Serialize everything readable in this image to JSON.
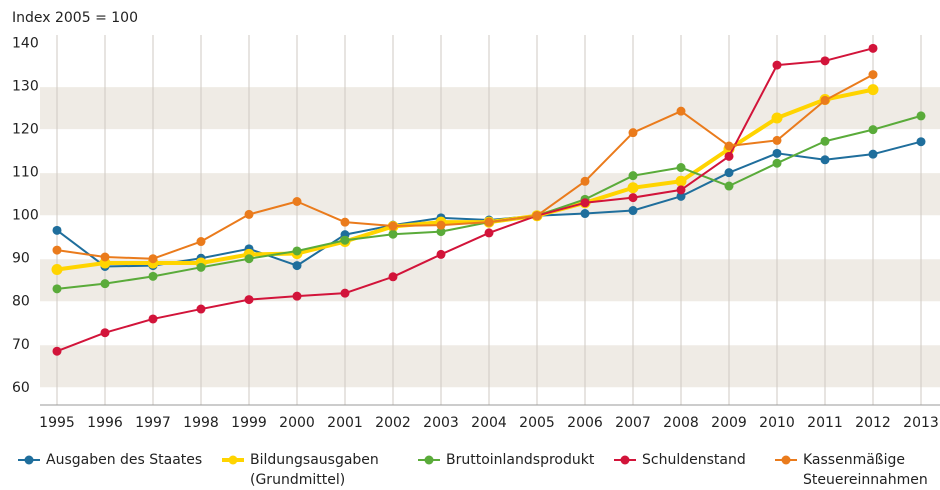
{
  "chart_data": {
    "type": "line",
    "y_axis_label": "Index 2005 = 100",
    "categories": [
      "1995",
      "1996",
      "1997",
      "1998",
      "1999",
      "2000",
      "2001",
      "2002",
      "2003",
      "2004",
      "2005",
      "2006",
      "2007",
      "2008",
      "2009",
      "2010",
      "2011",
      "2012",
      "2013"
    ],
    "ylim": [
      56,
      142
    ],
    "yticks": [
      60,
      70,
      80,
      90,
      100,
      110,
      120,
      130,
      140
    ],
    "banded_grid": true,
    "legend": "bottom",
    "series": [
      {
        "name": "Ausgaben des Staates",
        "color": "#1f6e9c",
        "values": [
          96.6,
          88.2,
          88.4,
          90.1,
          92.3,
          88.4,
          95.6,
          97.8,
          99.5,
          99,
          100,
          100.5,
          101.2,
          104.5,
          110,
          114.5,
          113,
          114.3,
          117.2
        ]
      },
      {
        "name": "Bildungsausgaben (Grundmittel)",
        "color": "#ffd400",
        "values": [
          87.5,
          89,
          89,
          89,
          91,
          91.2,
          94,
          97.5,
          98.5,
          98.5,
          100,
          103,
          106.5,
          108,
          115.5,
          122.7,
          127,
          129.3,
          null
        ]
      },
      {
        "name": "Bruttoinlandsprodukt",
        "color": "#5aab3a",
        "values": [
          83,
          84.2,
          85.9,
          88,
          90,
          91.8,
          94.3,
          95.7,
          96.3,
          98.5,
          100,
          103.8,
          109.3,
          111.2,
          106.9,
          112.2,
          117.3,
          120,
          123.2
        ]
      },
      {
        "name": "Schuldenstand",
        "color": "#d2143a",
        "values": [
          68.5,
          72.8,
          76,
          78.3,
          80.5,
          81.3,
          82,
          85.8,
          91,
          96,
          100,
          103,
          104.2,
          106,
          113.8,
          135,
          136,
          138.9,
          null
        ]
      },
      {
        "name": "Kassenmäßige Steuereinnahmen",
        "color": "#ea7b1c",
        "values": [
          92,
          90.4,
          90,
          94,
          100.3,
          103.3,
          98.5,
          97.6,
          97.8,
          98.5,
          100,
          108,
          119.3,
          124.3,
          116.2,
          117.5,
          126.8,
          132.8,
          null
        ]
      }
    ]
  }
}
